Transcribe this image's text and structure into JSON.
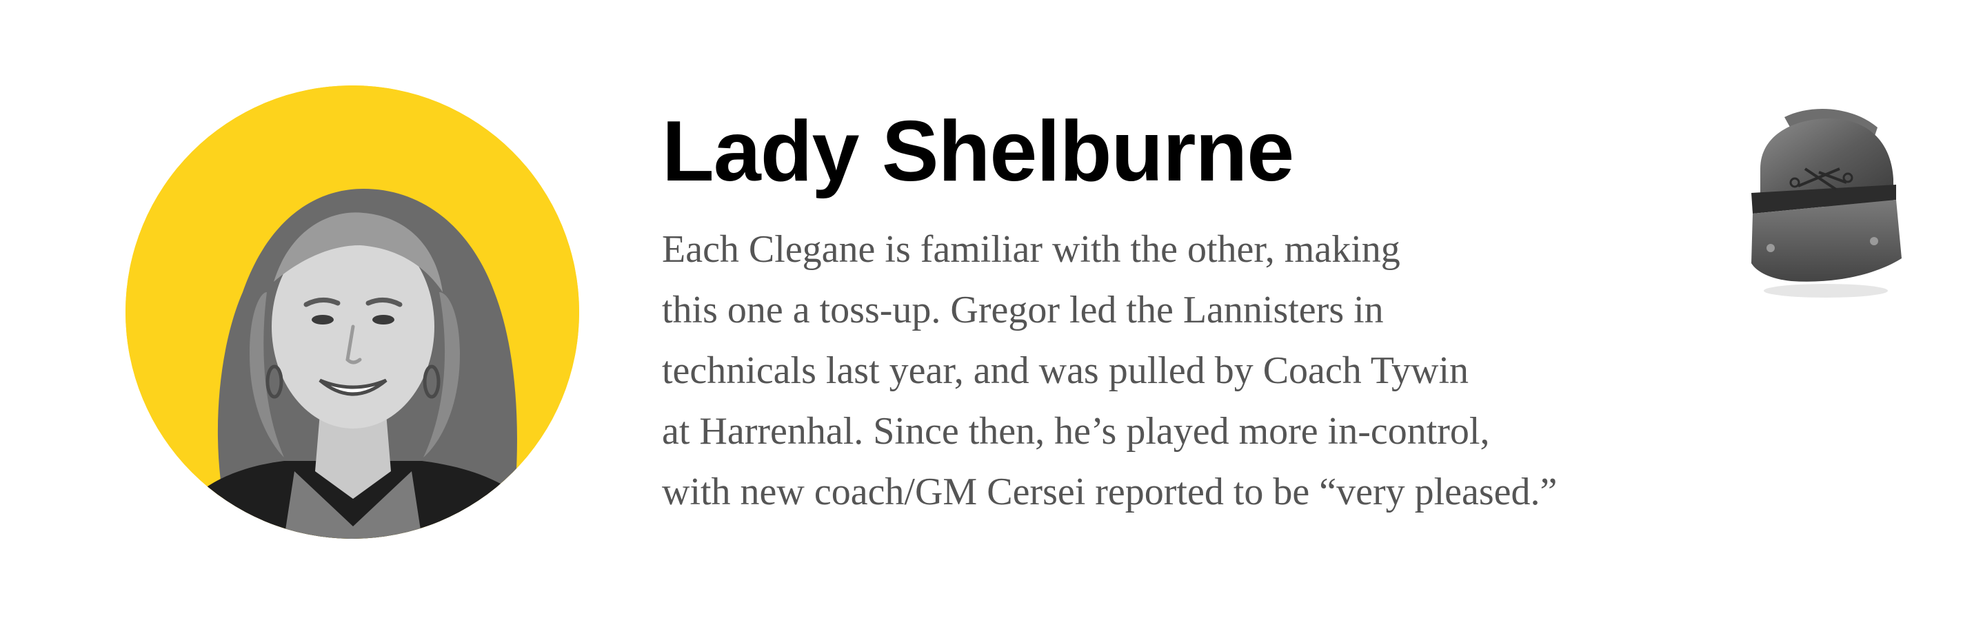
{
  "profile": {
    "name": "Lady Shelburne",
    "bio_lines": [
      "Each Clegane is familiar with the other, making",
      "this one a toss-up. Gregor led the Lannisters in",
      "technicals last year, and was pulled by Coach Tywin",
      "at Harrenhal. Since then, he’s played more in-control,",
      "with new coach/GM Cersei reported to be “very pleased.”"
    ]
  },
  "colors": {
    "accent": "#fdd31c",
    "name_text": "#000000",
    "bio_text": "#555555",
    "background": "#ffffff"
  },
  "icons": {
    "portrait": "avatar",
    "badge": "helmet-icon"
  }
}
